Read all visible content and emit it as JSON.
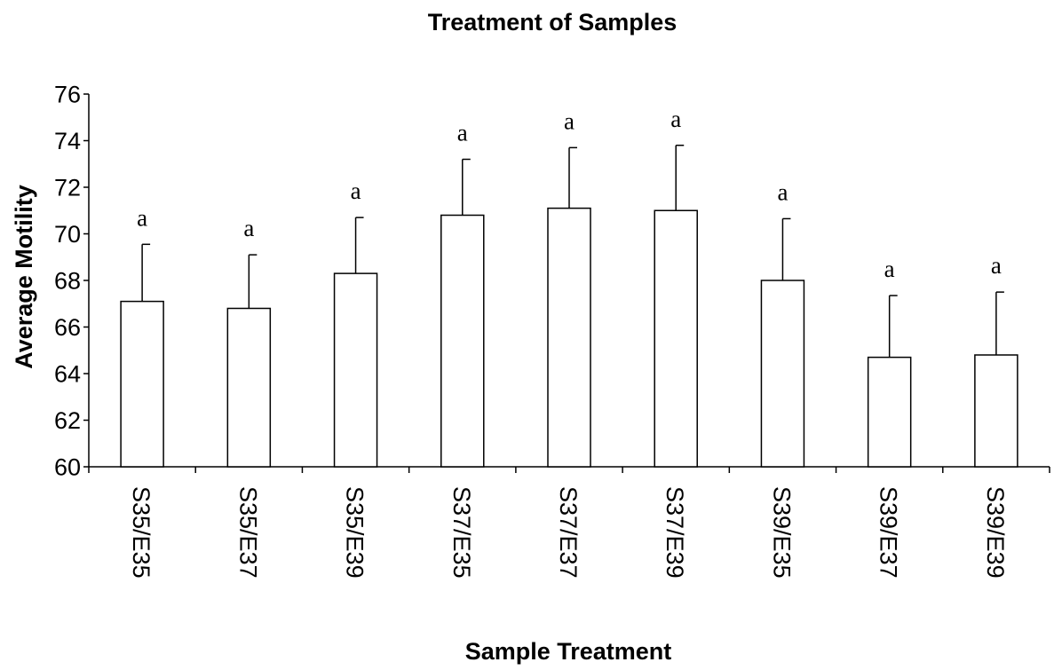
{
  "chart_data": {
    "type": "bar",
    "title": "Treatment of Samples",
    "xlabel": "Sample Treatment",
    "ylabel": "Average Motility",
    "ylim": [
      60,
      76
    ],
    "yticks": [
      60,
      62,
      64,
      66,
      68,
      70,
      72,
      74,
      76
    ],
    "grid": false,
    "categories": [
      "S35/E35",
      "S35/E37",
      "S35/E39",
      "S37/E35",
      "S37/E37",
      "S37/E39",
      "S39/E35",
      "S39/E37",
      "S39/E39"
    ],
    "values": [
      67.1,
      66.8,
      68.3,
      70.8,
      71.1,
      71.0,
      68.0,
      64.7,
      64.8
    ],
    "error_upper": [
      69.55,
      69.1,
      70.7,
      73.2,
      73.7,
      73.8,
      70.65,
      67.35,
      67.5
    ],
    "significance_labels": [
      "a",
      "a",
      "a",
      "a",
      "a",
      "a",
      "a",
      "a",
      "a"
    ],
    "colors": {
      "bar_fill": "#ffffff",
      "bar_stroke": "#000000",
      "axis": "#000000"
    }
  }
}
